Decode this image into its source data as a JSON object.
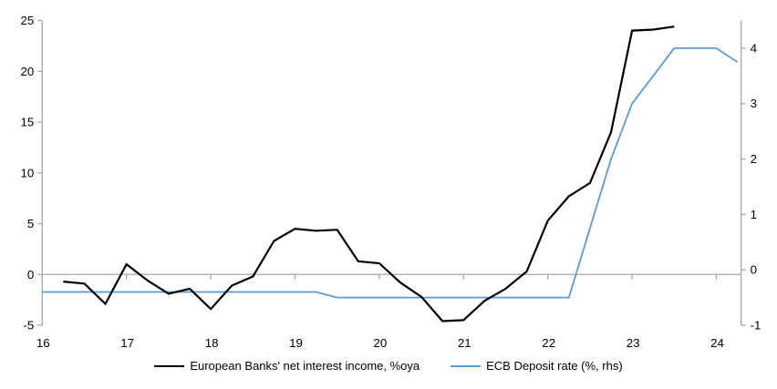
{
  "chart_data": {
    "type": "line",
    "title": "",
    "x_axis": {
      "tick_values": [
        16,
        17,
        18,
        19,
        20,
        21,
        22,
        23,
        24
      ],
      "tick_labels": [
        "16",
        "17",
        "18",
        "19",
        "20",
        "21",
        "22",
        "23",
        "24"
      ],
      "range": [
        16,
        24.3
      ]
    },
    "left_axis": {
      "tick_values": [
        25,
        20,
        15,
        10,
        5,
        0,
        -5
      ],
      "tick_labels": [
        "25",
        "20",
        "15",
        "10",
        "5",
        "0",
        "-5"
      ],
      "range": [
        -5,
        25
      ]
    },
    "right_axis": {
      "tick_values": [
        4,
        3,
        2,
        1,
        0,
        -1
      ],
      "tick_labels": [
        "4",
        "3",
        "2",
        "1",
        "0",
        "-1"
      ],
      "range": [
        -1,
        4.5
      ]
    },
    "grid": "horizontal zero line only",
    "legend_position": "bottom-center",
    "series": [
      {
        "name": "European Banks' net interest income, %oya",
        "axis": "left",
        "color": "#000000",
        "line_width": 2.2,
        "x": [
          16.25,
          16.5,
          16.75,
          17.0,
          17.25,
          17.5,
          17.75,
          18.0,
          18.25,
          18.5,
          18.75,
          19.0,
          19.25,
          19.5,
          19.75,
          20.0,
          20.25,
          20.5,
          20.75,
          21.0,
          21.25,
          21.5,
          21.75,
          22.0,
          22.25,
          22.5,
          22.75,
          23.0,
          23.25,
          23.5
        ],
        "values": [
          -0.7,
          -0.9,
          -2.9,
          1.0,
          -0.6,
          -1.9,
          -1.4,
          -3.4,
          -1.1,
          -0.2,
          3.3,
          4.5,
          4.3,
          4.4,
          1.3,
          1.1,
          -0.8,
          -2.2,
          -4.6,
          -4.5,
          -2.6,
          -1.4,
          0.3,
          5.3,
          7.7,
          9.0,
          14.0,
          24.0,
          24.1,
          24.4
        ]
      },
      {
        "name": "ECB Deposit rate (%, rhs)",
        "axis": "right",
        "color": "#5B9BD5",
        "line_width": 1.8,
        "x": [
          16.0,
          19.25,
          19.5,
          22.25,
          22.5,
          22.75,
          23.0,
          23.25,
          23.5,
          24.0,
          24.25
        ],
        "values": [
          -0.4,
          -0.4,
          -0.5,
          -0.5,
          0.75,
          2.0,
          3.0,
          3.5,
          4.0,
          4.0,
          3.75
        ]
      }
    ]
  },
  "colors": {
    "background": "#FFFFFF",
    "axis_line": "#A6A6A6",
    "zero_line": "#A6A6A6",
    "text": "#000000",
    "series_nii": "#000000",
    "series_ecb": "#5B9BD5"
  }
}
